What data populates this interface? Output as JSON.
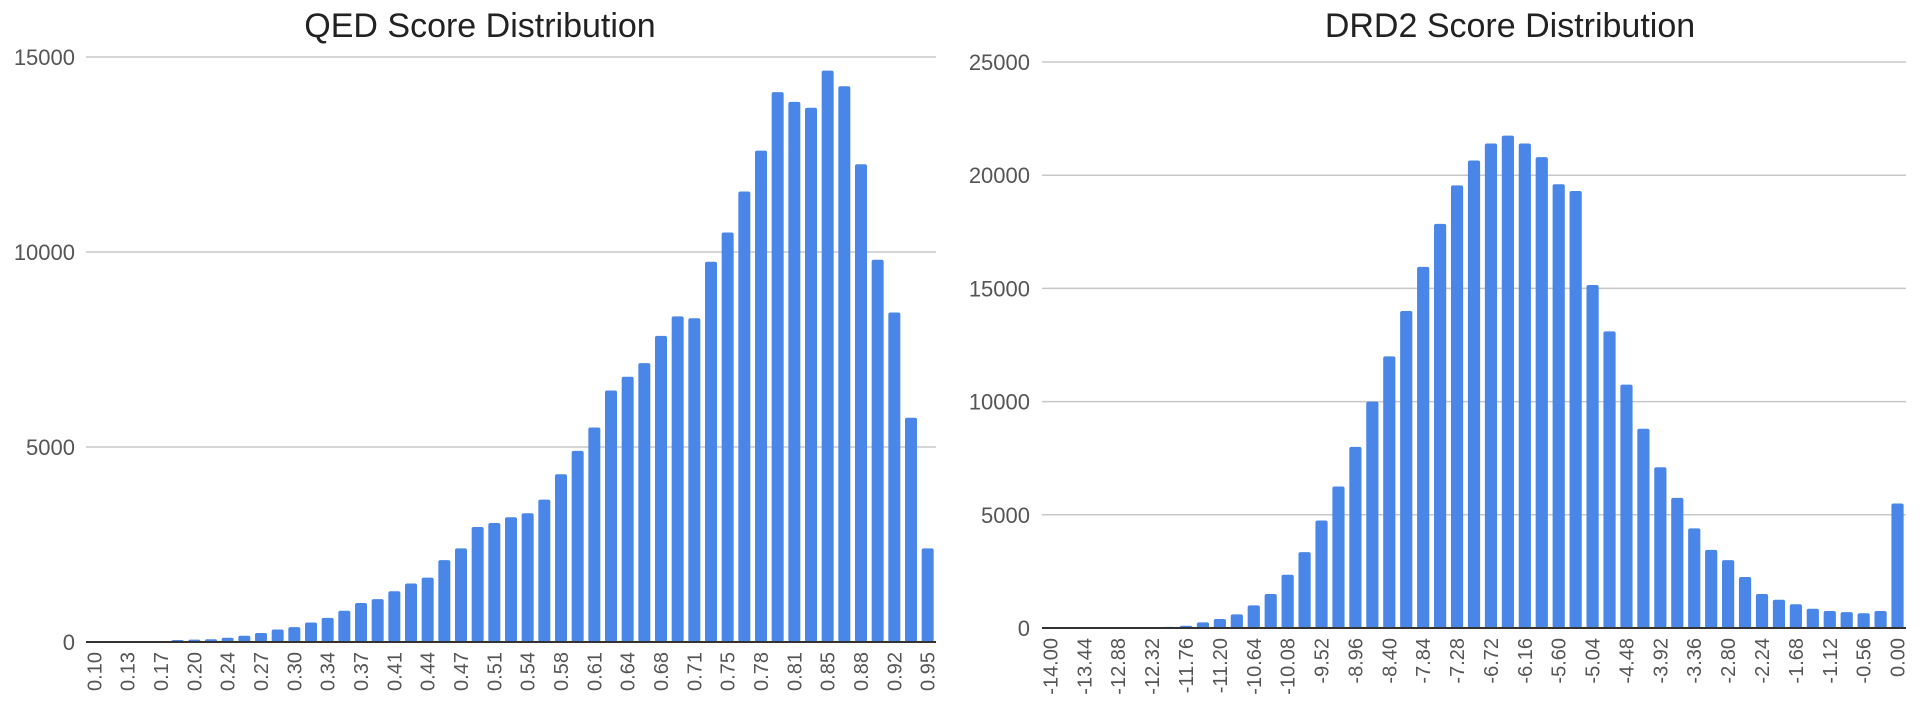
{
  "colors": {
    "bar": "#4a86e8",
    "grid": "#c8c8c8",
    "text": "#555555",
    "title": "#222222"
  },
  "chart_data": [
    {
      "type": "bar",
      "title": "QED Score Distribution",
      "xlabel": "",
      "ylabel": "",
      "ylim": [
        0,
        15000
      ],
      "yticks": [
        "0",
        "5000",
        "10000",
        "15000"
      ],
      "xtick_labels": [
        "0.10",
        "0.13",
        "0.17",
        "0.20",
        "0.24",
        "0.27",
        "0.30",
        "0.34",
        "0.37",
        "0.41",
        "0.44",
        "0.47",
        "0.51",
        "0.54",
        "0.58",
        "0.61",
        "0.64",
        "0.68",
        "0.71",
        "0.75",
        "0.78",
        "0.81",
        "0.85",
        "0.88",
        "0.92",
        "0.95"
      ],
      "grid": true,
      "legend": "none",
      "values": [
        0,
        0,
        0,
        0,
        0,
        50,
        60,
        70,
        110,
        160,
        230,
        320,
        380,
        500,
        620,
        800,
        1000,
        1100,
        1300,
        1500,
        1650,
        2100,
        2400,
        2950,
        3050,
        3200,
        3300,
        3650,
        4300,
        4900,
        5500,
        6450,
        6800,
        7150,
        7850,
        8350,
        8300,
        9750,
        10500,
        11550,
        12600,
        14100,
        13850,
        13700,
        14650,
        14250,
        12250,
        9800,
        8450,
        5750,
        2400
      ]
    },
    {
      "type": "bar",
      "title": "DRD2 Score Distribution",
      "xlabel": "",
      "ylabel": "",
      "ylim": [
        0,
        25000
      ],
      "yticks": [
        "0",
        "5000",
        "10000",
        "15000",
        "20000",
        "25000"
      ],
      "xtick_labels": [
        "-14.00",
        "-13.44",
        "-12.88",
        "-12.32",
        "-11.76",
        "-11.20",
        "-10.64",
        "-10.08",
        "-9.52",
        "-8.96",
        "-8.40",
        "-7.84",
        "-7.28",
        "-6.72",
        "-6.16",
        "-5.60",
        "-5.04",
        "-4.48",
        "-3.92",
        "-3.36",
        "-2.80",
        "-2.24",
        "-1.68",
        "-1.12",
        "-0.56",
        "0.00"
      ],
      "grid": true,
      "legend": "none",
      "values": [
        0,
        0,
        0,
        0,
        0,
        0,
        0,
        50,
        100,
        250,
        400,
        600,
        1000,
        1500,
        2350,
        3350,
        4750,
        6250,
        8000,
        10000,
        12000,
        14000,
        15950,
        17850,
        19550,
        20650,
        21400,
        21750,
        21400,
        20800,
        19600,
        19300,
        15150,
        13100,
        10750,
        8800,
        7100,
        5750,
        4400,
        3450,
        3000,
        2250,
        1500,
        1250,
        1050,
        850,
        750,
        700,
        650,
        750,
        5500
      ]
    }
  ]
}
